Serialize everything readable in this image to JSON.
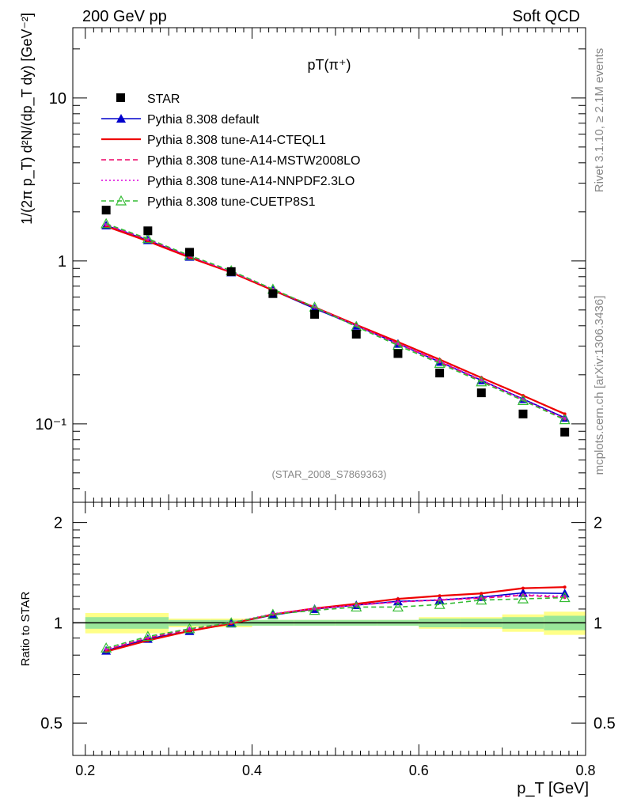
{
  "header": {
    "left": "200 GeV pp",
    "right": "Soft QCD"
  },
  "side_labels": {
    "rivet": "Rivet 3.1.10, ≥ 2.1M events",
    "mcplots": "mcplots.cern.ch [arXiv:1306.3436]"
  },
  "chart_data": [
    {
      "panel": "main",
      "type": "line",
      "title": "pT(π⁺)",
      "ref_label": "(STAR_2008_S7869363)",
      "xlabel": "p_T [GeV]",
      "ylabel": "1/(2π p_T) d²N/(dp_T dy) [GeV⁻²]",
      "ylog": true,
      "xlim": [
        0.185,
        0.8
      ],
      "ylim": [
        0.033,
        27
      ],
      "yticks": [
        {
          "value": 10,
          "label": "10"
        },
        {
          "value": 1,
          "label": "1"
        },
        {
          "value": 0.1,
          "label": "10⁻¹"
        }
      ],
      "legend_position": "top-left",
      "x": [
        0.225,
        0.275,
        0.325,
        0.375,
        0.425,
        0.475,
        0.525,
        0.575,
        0.625,
        0.675,
        0.725,
        0.775
      ],
      "data_series": {
        "name": "STAR",
        "color": "#000000",
        "values": [
          2.05,
          1.53,
          1.13,
          0.86,
          0.63,
          0.47,
          0.355,
          0.27,
          0.205,
          0.155,
          0.115,
          0.089
        ]
      },
      "series": [
        {
          "name": "Pythia 8.308 default",
          "color": "#0000cc",
          "style": "solid-triangle",
          "values": [
            1.65,
            1.34,
            1.06,
            0.85,
            0.66,
            0.51,
            0.4,
            0.31,
            0.24,
            0.185,
            0.142,
            0.109
          ]
        },
        {
          "name": "Pythia 8.308 tune-A14-CTEQL1",
          "color": "#ee0000",
          "style": "solid",
          "values": [
            1.63,
            1.32,
            1.05,
            0.85,
            0.66,
            0.52,
            0.405,
            0.318,
            0.248,
            0.192,
            0.149,
            0.115
          ]
        },
        {
          "name": "Pythia 8.308 tune-A14-MSTW2008LO",
          "color": "#ee0066",
          "style": "dashed",
          "values": [
            1.66,
            1.35,
            1.07,
            0.86,
            0.67,
            0.52,
            0.4,
            0.31,
            0.24,
            0.184,
            0.14,
            0.107
          ]
        },
        {
          "name": "Pythia 8.308 tune-A14-NNPDF2.3LO",
          "color": "#dd00dd",
          "style": "dotted",
          "values": [
            1.67,
            1.36,
            1.07,
            0.86,
            0.67,
            0.52,
            0.4,
            0.312,
            0.242,
            0.186,
            0.141,
            0.108
          ]
        },
        {
          "name": "Pythia 8.308 tune-CUETP8S1",
          "color": "#33bb33",
          "style": "dashed-open-triangle",
          "values": [
            1.69,
            1.37,
            1.08,
            0.87,
            0.67,
            0.52,
            0.395,
            0.303,
            0.235,
            0.181,
            0.139,
            0.106
          ]
        }
      ]
    },
    {
      "panel": "ratio",
      "type": "line",
      "ylabel": "Ratio to STAR",
      "xlabel": "p_T [GeV]",
      "xlim": [
        0.185,
        0.8
      ],
      "ylim": [
        0.4,
        2.3
      ],
      "ylog": true,
      "yticks": [
        {
          "value": 2,
          "label": "2"
        },
        {
          "value": 1,
          "label": "1"
        },
        {
          "value": 0.5,
          "label": "0.5"
        }
      ],
      "xticks": [
        {
          "value": 0.2,
          "label": "0.2"
        },
        {
          "value": 0.4,
          "label": "0.4"
        },
        {
          "value": 0.6,
          "label": "0.6"
        },
        {
          "value": 0.8,
          "label": "0.8"
        }
      ],
      "x": [
        0.225,
        0.275,
        0.325,
        0.375,
        0.425,
        0.475,
        0.525,
        0.575,
        0.625,
        0.675,
        0.725,
        0.775
      ],
      "band": {
        "x_edges": [
          0.2,
          0.25,
          0.3,
          0.35,
          0.4,
          0.45,
          0.5,
          0.55,
          0.6,
          0.65,
          0.7,
          0.75,
          0.8
        ],
        "stat": [
          0.04,
          0.04,
          0.02,
          0.02,
          0.02,
          0.02,
          0.02,
          0.02,
          0.03,
          0.03,
          0.04,
          0.05
        ],
        "total": [
          0.07,
          0.07,
          0.03,
          0.03,
          0.02,
          0.02,
          0.02,
          0.02,
          0.04,
          0.04,
          0.06,
          0.08
        ]
      },
      "series": [
        {
          "name": "Pythia 8.308 default",
          "color": "#0000cc",
          "style": "solid-triangle",
          "values": [
            0.825,
            0.895,
            0.945,
            0.995,
            1.055,
            1.1,
            1.13,
            1.16,
            1.17,
            1.195,
            1.23,
            1.225
          ]
        },
        {
          "name": "Pythia 8.308 tune-A14-CTEQL1",
          "color": "#ee0000",
          "style": "solid",
          "values": [
            0.82,
            0.885,
            0.945,
            0.995,
            1.06,
            1.105,
            1.14,
            1.18,
            1.205,
            1.225,
            1.27,
            1.28
          ]
        },
        {
          "name": "Pythia 8.308 tune-A14-MSTW2008LO",
          "color": "#ee0066",
          "style": "dashed",
          "values": [
            0.83,
            0.9,
            0.955,
            1.0,
            1.06,
            1.1,
            1.13,
            1.155,
            1.17,
            1.185,
            1.21,
            1.19
          ]
        },
        {
          "name": "Pythia 8.308 tune-A14-NNPDF2.3LO",
          "color": "#dd00dd",
          "style": "dotted",
          "values": [
            0.835,
            0.905,
            0.96,
            1.0,
            1.065,
            1.105,
            1.13,
            1.155,
            1.175,
            1.19,
            1.215,
            1.2
          ]
        },
        {
          "name": "Pythia 8.308 tune-CUETP8S1",
          "color": "#33bb33",
          "style": "dashed-open-triangle",
          "values": [
            0.84,
            0.91,
            0.96,
            1.0,
            1.06,
            1.09,
            1.115,
            1.115,
            1.135,
            1.17,
            1.18,
            1.19
          ]
        }
      ]
    }
  ]
}
